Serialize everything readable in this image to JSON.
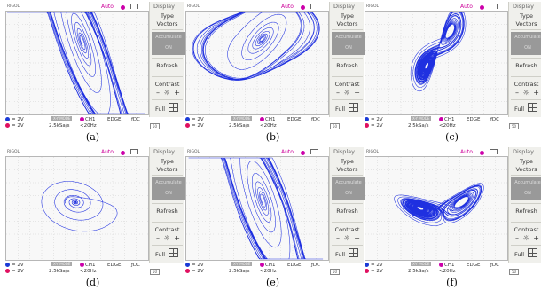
{
  "topbar": {
    "brand": "RIGOL",
    "mode": "Auto"
  },
  "menu": {
    "header": "Display",
    "type": "Type",
    "vectors": "Vectors",
    "accumulate": "Accumulate",
    "accumulate_state": "ON",
    "refresh": "Refresh",
    "contrast": "Contrast",
    "contrast_icons": "– ☼ +",
    "full": "Full"
  },
  "status": {
    "ch1_scale": "= 2V",
    "ch2_scale": "= 2V",
    "mode_box": "X-Y MODE",
    "sample_rate": "2.5kSa/s",
    "trig_src": "CH1",
    "trig_type": "EDGE",
    "coupling": "ƒDC",
    "freq": "<20Hz",
    "box50": "50"
  },
  "panels": [
    {
      "caption": "(a)"
    },
    {
      "caption": "(b)"
    },
    {
      "caption": "(c)"
    },
    {
      "caption": "(d)"
    },
    {
      "caption": "(e)"
    },
    {
      "caption": "(f)"
    }
  ],
  "colors": {
    "trace": "#1f30e0",
    "grid": "#c8c8c8",
    "menu_bg": "#f0f0ec",
    "accent": "#cc00aa"
  },
  "icons": {
    "full": "grid-icon",
    "contrast": "brightness-icon",
    "trigger": "trigger-icon"
  }
}
